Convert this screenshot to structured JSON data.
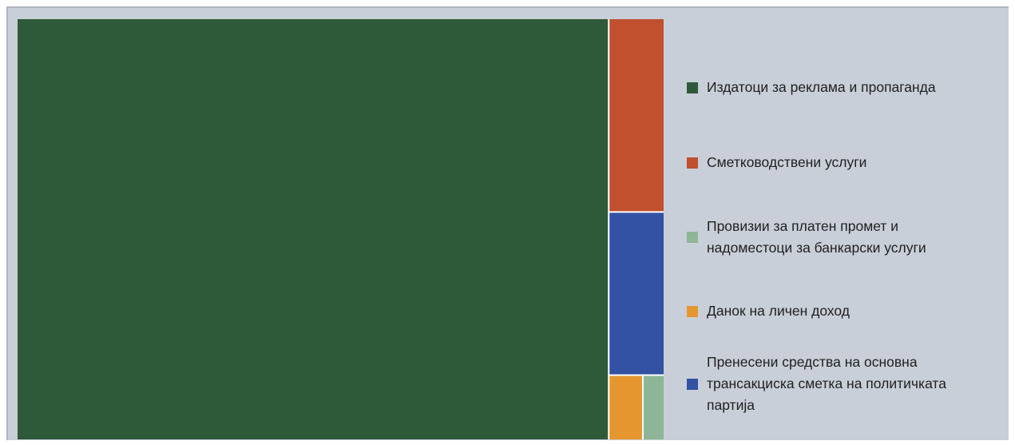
{
  "chart_data": {
    "type": "treemap",
    "title": "",
    "legend_position": "right",
    "items": [
      {
        "label": "Издатоци за реклама и пропаганда",
        "value": 91.5,
        "color": "#2f5a3a"
      },
      {
        "label": "Сметководствени услуги",
        "value": 3.9,
        "color": "#c0502e"
      },
      {
        "label": "Провизии за платен пром​ет и надоместоци за банкарски услуги",
        "value": 0.5,
        "color": "#8eb596"
      },
      {
        "label": "Данок на личен доход",
        "value": 0.8,
        "color": "#e5962e"
      },
      {
        "label": "Пренесени средства на основна трансакциска сметка на политичката партија",
        "value": 3.3,
        "color": "#3452a4"
      }
    ]
  },
  "legend": {
    "items": [
      {
        "label": "Издатоци за реклама и пропаганда",
        "color": "#2f5a3a"
      },
      {
        "label": "Сметководствени услуги",
        "color": "#c0502e"
      },
      {
        "label": "Провизии за платен промет и\nнадоместоци за банкарски услуги",
        "color": "#8eb596"
      },
      {
        "label": "Данок на личен доход",
        "color": "#e5962e"
      },
      {
        "label": "Пренесени средства на основна\nтрансакциска сметка на политичката\nпартија",
        "color": "#3452a4"
      }
    ]
  }
}
